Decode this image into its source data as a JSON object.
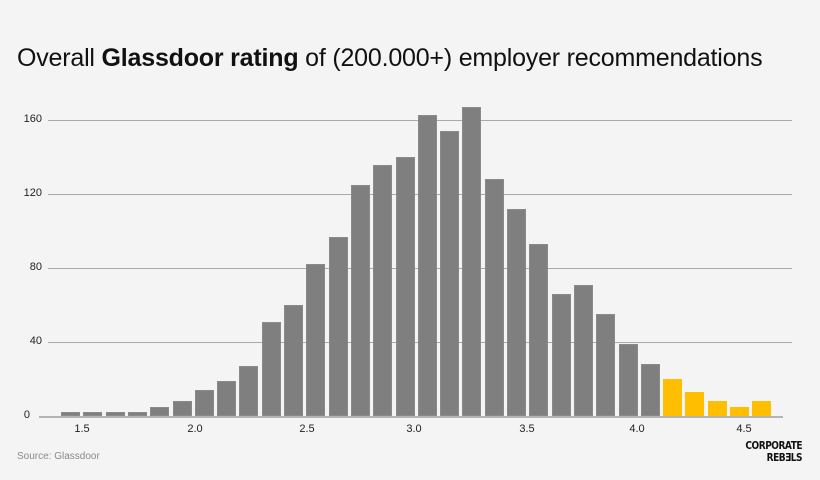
{
  "title": {
    "prefix": "Overall ",
    "bold": "Glassdoor rating",
    "suffix": " of (200.000+) employer recommendations"
  },
  "source": "Source: Glassdoor",
  "logo": {
    "line1": "CORPORATE",
    "line2": "REBƎLS"
  },
  "colors": {
    "bar": "#7f7f7f",
    "highlight": "#ffbf00",
    "background": "#f4f4f4",
    "grid": "#a9a9a9"
  },
  "y_ticks": [
    "0",
    "40",
    "80",
    "120",
    "160"
  ],
  "x_ticks": [
    "1.5",
    "2.0",
    "2.5",
    "3.0",
    "3.5",
    "4.0",
    "4.5"
  ],
  "chart_data": {
    "type": "bar",
    "title": "Overall Glassdoor rating of (200.000+) employer recommendations",
    "xlabel": "",
    "ylabel": "",
    "categories": [
      "1.4",
      "1.5",
      "1.6",
      "1.7",
      "1.8",
      "1.9",
      "2.0",
      "2.1",
      "2.2",
      "2.3",
      "2.4",
      "2.5",
      "2.6",
      "2.7",
      "2.8",
      "2.9",
      "3.0",
      "3.1",
      "3.2",
      "3.3",
      "3.4",
      "3.5",
      "3.6",
      "3.7",
      "3.8",
      "3.9",
      "4.0",
      "4.1",
      "4.2",
      "4.3",
      "4.4",
      "4.5"
    ],
    "values": [
      2,
      2,
      2,
      2,
      5,
      8,
      14,
      19,
      27,
      51,
      60,
      82,
      97,
      125,
      136,
      140,
      163,
      154,
      167,
      128,
      112,
      93,
      66,
      71,
      55,
      39,
      28,
      20,
      13,
      8,
      5,
      8
    ],
    "highlighted_from_index": 27,
    "highlight_note": "bars for ratings 4.1 and above shown in yellow",
    "ylim": [
      0,
      170
    ],
    "y_ticks": [
      0,
      40,
      80,
      120,
      160
    ],
    "x_ticks": [
      1.5,
      2.0,
      2.5,
      3.0,
      3.5,
      4.0,
      4.5
    ],
    "grid": true,
    "legend": null,
    "source": "Source: Glassdoor"
  }
}
